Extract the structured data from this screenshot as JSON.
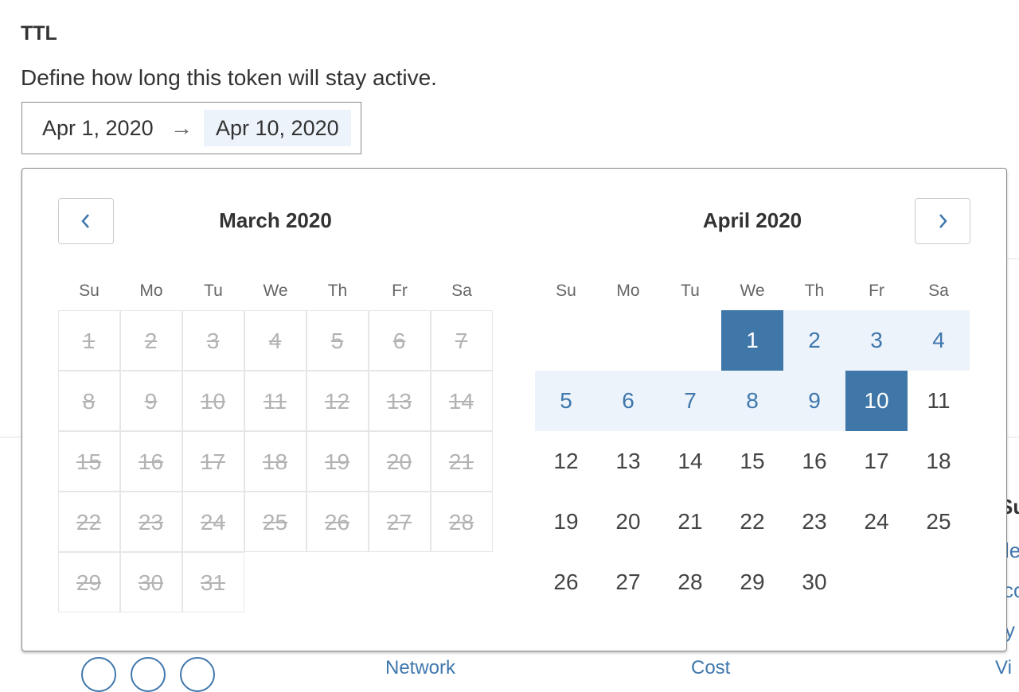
{
  "section": {
    "title": "TTL",
    "description": "Define how long this token will stay active."
  },
  "range_input": {
    "start": "Apr 1, 2020",
    "arrow": "→",
    "end": "Apr 10, 2020"
  },
  "calendar": {
    "prev_icon": "chevron-left-icon",
    "next_icon": "chevron-right-icon",
    "weekdays": [
      "Su",
      "Mo",
      "Tu",
      "We",
      "Th",
      "Fr",
      "Sa"
    ],
    "months": [
      {
        "title": "March 2020",
        "first_weekday": 0,
        "days": 31,
        "all_disabled": true
      },
      {
        "title": "April 2020",
        "first_weekday": 3,
        "days": 30,
        "all_disabled": false,
        "range_start": 1,
        "range_end": 10
      }
    ]
  },
  "background": {
    "right_fragments": [
      "Su",
      "le",
      "co",
      "y"
    ],
    "bottom_fragments": [
      "Network",
      "Cost",
      "Vi"
    ]
  },
  "colors": {
    "accent": "#3f77a9",
    "range_bg": "#ecf3fa",
    "disabled": "#b3b3b3"
  }
}
